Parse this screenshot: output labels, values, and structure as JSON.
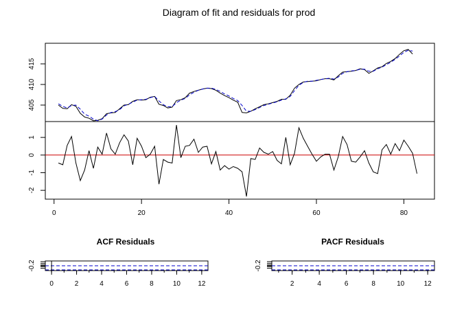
{
  "colors": {
    "fit_line": "#000000",
    "fitted_dashed": "#0000cc",
    "zero_line": "#cc0000",
    "band": "#0000cc"
  },
  "chart_data": [
    {
      "type": "line",
      "panel": "fit",
      "title": "Diagram of fit and residuals for prod",
      "ylim": [
        401,
        420
      ],
      "yticks": [
        "405",
        "410",
        "415"
      ],
      "xlim": [
        -2,
        87
      ],
      "series": [
        {
          "style": "solid",
          "values": [
            405,
            404.2,
            404.1,
            405.1,
            404.7,
            403,
            402.1,
            401.8,
            401.2,
            401.3,
            401.7,
            402.9,
            403.1,
            403.2,
            404.1,
            405,
            405.1,
            405.9,
            406.3,
            406.2,
            406.3,
            406.9,
            407.1,
            405.2,
            404.9,
            404.3,
            404.5,
            406.1,
            406.3,
            406.8,
            407.9,
            408.3,
            408.6,
            408.9,
            409.1,
            409,
            408.6,
            407.9,
            407.3,
            406.8,
            406.2,
            405.7,
            403.2,
            403.1,
            403.5,
            404.1,
            404.6,
            405.1,
            405.3,
            405.6,
            405.9,
            406.4,
            406.4,
            407.4,
            409.1,
            410,
            410.6,
            410.7,
            410.8,
            410.9,
            411.2,
            411.4,
            411.4,
            411.1,
            412.1,
            413,
            413.1,
            413.2,
            413.4,
            413.8,
            413.6,
            412.7,
            413.3,
            414,
            414.3,
            415.1,
            415.6,
            416.3,
            417.3,
            418.2,
            418.5,
            417.4
          ]
        },
        {
          "style": "dashed",
          "values": [
            405.3,
            404.7,
            404.3,
            404.9,
            405,
            404,
            402.8,
            402.3,
            401.6,
            401.2,
            401.6,
            402.6,
            403.2,
            403.4,
            403.9,
            404.8,
            405.2,
            405.7,
            406.2,
            406.3,
            406.4,
            406.8,
            407.1,
            406,
            405.1,
            404.6,
            404.6,
            405.6,
            406.2,
            406.6,
            407.5,
            408.1,
            408.6,
            408.9,
            409.1,
            409.1,
            408.8,
            408.3,
            407.7,
            407.2,
            406.6,
            406.1,
            404.9,
            403.5,
            403.5,
            403.9,
            404.4,
            404.9,
            405.2,
            405.5,
            405.8,
            406.2,
            406.5,
            407.1,
            408.5,
            409.8,
            410.5,
            410.8,
            410.8,
            411,
            411.2,
            411.4,
            411.5,
            411.3,
            411.8,
            412.7,
            413.1,
            413.3,
            413.4,
            413.7,
            413.7,
            413.2,
            413.2,
            413.8,
            414.2,
            414.8,
            415.4,
            416.1,
            416.9,
            417.8,
            418.3,
            418.1
          ]
        }
      ]
    },
    {
      "type": "line",
      "panel": "residuals",
      "xlim": [
        -2,
        87
      ],
      "xticks": [
        "0",
        "20",
        "40",
        "60",
        "80"
      ],
      "ylim": [
        -2.5,
        1.9
      ],
      "yticks": [
        "-2",
        "-1",
        "0",
        "1"
      ],
      "hline": 0,
      "x_start": 1,
      "values": [
        -0.45,
        -0.55,
        0.55,
        1.05,
        -0.45,
        -1.45,
        -0.85,
        0.25,
        -0.75,
        0.45,
        0.05,
        1.25,
        0.35,
        0.05,
        0.7,
        1.15,
        0.8,
        -0.55,
        0.95,
        0.5,
        -0.15,
        0.05,
        0.5,
        -1.65,
        -0.25,
        -0.4,
        -0.45,
        1.7,
        -0.15,
        0.5,
        0.55,
        0.9,
        0.15,
        0.45,
        0.5,
        -0.5,
        0.2,
        -0.85,
        -0.6,
        -0.8,
        -0.65,
        -0.75,
        -0.95,
        -2.35,
        -0.2,
        -0.25,
        0.4,
        0.15,
        0.05,
        0.2,
        -0.3,
        -0.5,
        1.0,
        -0.55,
        0.1,
        1.55,
        0.95,
        0.5,
        0.05,
        -0.35,
        -0.1,
        0.05,
        0.05,
        -0.85,
        -0.1,
        1.05,
        0.6,
        -0.35,
        -0.4,
        -0.1,
        0.25,
        -0.45,
        -0.95,
        -1.05,
        0.3,
        0.6,
        0.05,
        0.65,
        0.25,
        0.85,
        0.5,
        0.1,
        -1.05
      ]
    },
    {
      "type": "bar",
      "panel": "acf",
      "title": "ACF Residuals",
      "xlim": [
        -0.5,
        12.5
      ],
      "xticks": [
        "0",
        "2",
        "4",
        "6",
        "8",
        "10",
        "12"
      ],
      "ylim": [
        -0.25,
        -0.15
      ],
      "yticks": [
        "-0.2"
      ],
      "band": -0.2
    },
    {
      "type": "bar",
      "panel": "pacf",
      "title": "PACF Residuals",
      "xlim": [
        0.5,
        12.5
      ],
      "xticks": [
        "2",
        "4",
        "6",
        "8",
        "10",
        "12"
      ],
      "ylim": [
        -0.25,
        -0.15
      ],
      "yticks": [
        "-0.2"
      ],
      "band": -0.2
    }
  ]
}
